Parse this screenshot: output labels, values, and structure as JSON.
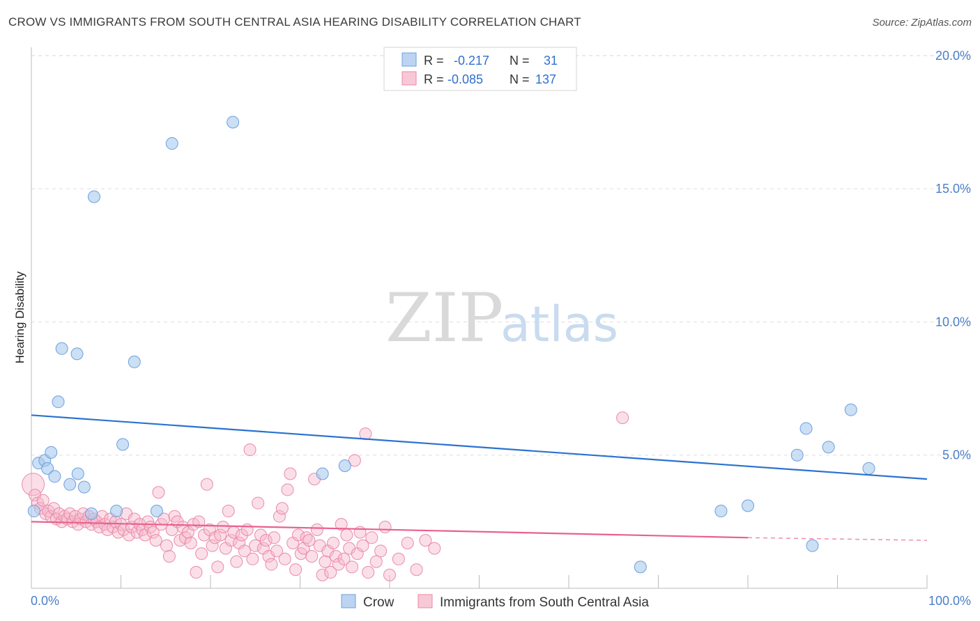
{
  "title": "CROW VS IMMIGRANTS FROM SOUTH CENTRAL ASIA HEARING DISABILITY CORRELATION CHART",
  "source": "Source: ZipAtlas.com",
  "watermark": {
    "zip": "ZIP",
    "atlas": "atlas"
  },
  "colors": {
    "crow_fill": "#a9c9ef",
    "crow_stroke": "#6e9fdc",
    "crow_line": "#2a72d0",
    "imm_fill": "#f7b8cc",
    "imm_stroke": "#e98aa8",
    "imm_line": "#e8608e",
    "axis_text": "#4a7fc9",
    "grid": "#dddddd"
  },
  "stats": {
    "row1": {
      "r_label": "R =",
      "r_value": "-0.217",
      "n_label": "N =",
      "n_value": "31"
    },
    "row2": {
      "r_label": "R =",
      "r_value": "-0.085",
      "n_label": "N =",
      "n_value": "137"
    }
  },
  "chart_data": {
    "type": "scatter",
    "title": "CROW VS IMMIGRANTS FROM SOUTH CENTRAL ASIA HEARING DISABILITY CORRELATION CHART",
    "xlabel": "",
    "ylabel": "Hearing Disability",
    "xlim": [
      0,
      100
    ],
    "ylim": [
      0,
      21
    ],
    "x_tick_labels": [
      "0.0%",
      "100.0%"
    ],
    "y_ticks": [
      5,
      10,
      15,
      20
    ],
    "y_tick_labels": [
      "5.0%",
      "10.0%",
      "15.0%",
      "20.0%"
    ],
    "grid": "horizontal dashed",
    "legend_position": "bottom",
    "series": [
      {
        "name": "Crow",
        "r": -0.217,
        "n": 31,
        "trend": {
          "x": [
            0,
            100
          ],
          "y": [
            6.5,
            4.1
          ]
        },
        "points": [
          [
            0.3,
            2.9
          ],
          [
            0.8,
            4.7
          ],
          [
            1.5,
            4.8
          ],
          [
            1.8,
            4.5
          ],
          [
            2.2,
            5.1
          ],
          [
            2.6,
            4.2
          ],
          [
            3.0,
            7.0
          ],
          [
            3.4,
            9.0
          ],
          [
            4.3,
            3.9
          ],
          [
            5.1,
            8.8
          ],
          [
            5.2,
            4.3
          ],
          [
            5.9,
            3.8
          ],
          [
            6.7,
            2.8
          ],
          [
            7.0,
            14.7
          ],
          [
            9.5,
            2.9
          ],
          [
            10.2,
            5.4
          ],
          [
            11.5,
            8.5
          ],
          [
            14.0,
            2.9
          ],
          [
            15.7,
            16.7
          ],
          [
            22.5,
            17.5
          ],
          [
            32.5,
            4.3
          ],
          [
            35.0,
            4.6
          ],
          [
            68.0,
            0.8
          ],
          [
            77.0,
            2.9
          ],
          [
            80.0,
            3.1
          ],
          [
            85.5,
            5.0
          ],
          [
            86.5,
            6.0
          ],
          [
            87.2,
            1.6
          ],
          [
            89.0,
            5.3
          ],
          [
            91.5,
            6.7
          ],
          [
            93.5,
            4.5
          ]
        ]
      },
      {
        "name": "Immigrants from South Central Asia",
        "r": -0.085,
        "n": 137,
        "trend": {
          "x": [
            0,
            80
          ],
          "y": [
            2.5,
            1.9
          ]
        },
        "trend_dashed": {
          "x": [
            80,
            100
          ],
          "y": [
            1.9,
            1.8
          ]
        },
        "points": [
          [
            0.2,
            3.9
          ],
          [
            0.4,
            3.5
          ],
          [
            0.7,
            3.2
          ],
          [
            1.0,
            3.0
          ],
          [
            1.3,
            3.3
          ],
          [
            1.6,
            2.8
          ],
          [
            1.9,
            2.9
          ],
          [
            2.2,
            2.7
          ],
          [
            2.5,
            3.0
          ],
          [
            2.8,
            2.6
          ],
          [
            3.1,
            2.8
          ],
          [
            3.4,
            2.5
          ],
          [
            3.7,
            2.7
          ],
          [
            4.0,
            2.6
          ],
          [
            4.3,
            2.8
          ],
          [
            4.6,
            2.5
          ],
          [
            4.9,
            2.7
          ],
          [
            5.2,
            2.4
          ],
          [
            5.5,
            2.6
          ],
          [
            5.8,
            2.8
          ],
          [
            6.1,
            2.5
          ],
          [
            6.4,
            2.7
          ],
          [
            6.7,
            2.4
          ],
          [
            7.0,
            2.6
          ],
          [
            7.3,
            2.5
          ],
          [
            7.6,
            2.3
          ],
          [
            7.9,
            2.7
          ],
          [
            8.2,
            2.4
          ],
          [
            8.5,
            2.2
          ],
          [
            8.8,
            2.6
          ],
          [
            9.1,
            2.3
          ],
          [
            9.4,
            2.5
          ],
          [
            9.7,
            2.1
          ],
          [
            10.0,
            2.4
          ],
          [
            10.3,
            2.2
          ],
          [
            10.6,
            2.8
          ],
          [
            10.9,
            2.0
          ],
          [
            11.2,
            2.3
          ],
          [
            11.5,
            2.6
          ],
          [
            11.8,
            2.1
          ],
          [
            12.1,
            2.4
          ],
          [
            12.4,
            2.2
          ],
          [
            12.7,
            2.0
          ],
          [
            13.0,
            2.5
          ],
          [
            13.3,
            2.3
          ],
          [
            13.6,
            2.1
          ],
          [
            13.9,
            1.8
          ],
          [
            14.2,
            3.6
          ],
          [
            14.5,
            2.4
          ],
          [
            14.8,
            2.6
          ],
          [
            15.1,
            1.6
          ],
          [
            15.4,
            1.2
          ],
          [
            15.7,
            2.2
          ],
          [
            16.0,
            2.7
          ],
          [
            16.3,
            2.5
          ],
          [
            16.6,
            1.8
          ],
          [
            16.9,
            2.3
          ],
          [
            17.2,
            1.9
          ],
          [
            17.5,
            2.1
          ],
          [
            17.8,
            1.7
          ],
          [
            18.1,
            2.4
          ],
          [
            18.4,
            0.6
          ],
          [
            18.7,
            2.5
          ],
          [
            19.0,
            1.3
          ],
          [
            19.3,
            2.0
          ],
          [
            19.6,
            3.9
          ],
          [
            19.9,
            2.2
          ],
          [
            20.2,
            1.6
          ],
          [
            20.5,
            1.9
          ],
          [
            20.8,
            0.8
          ],
          [
            21.1,
            2.0
          ],
          [
            21.4,
            2.3
          ],
          [
            21.7,
            1.5
          ],
          [
            22.0,
            2.9
          ],
          [
            22.3,
            1.8
          ],
          [
            22.6,
            2.1
          ],
          [
            22.9,
            1.0
          ],
          [
            23.2,
            1.7
          ],
          [
            23.5,
            2.0
          ],
          [
            23.8,
            1.4
          ],
          [
            24.1,
            2.2
          ],
          [
            24.4,
            5.2
          ],
          [
            24.7,
            1.1
          ],
          [
            25.0,
            1.6
          ],
          [
            25.3,
            3.2
          ],
          [
            25.6,
            2.0
          ],
          [
            25.9,
            1.5
          ],
          [
            26.2,
            1.8
          ],
          [
            26.5,
            1.2
          ],
          [
            26.8,
            0.9
          ],
          [
            27.1,
            1.9
          ],
          [
            27.4,
            1.4
          ],
          [
            27.7,
            2.7
          ],
          [
            28.0,
            3.0
          ],
          [
            28.3,
            1.1
          ],
          [
            28.6,
            3.7
          ],
          [
            28.9,
            4.3
          ],
          [
            29.2,
            1.7
          ],
          [
            29.5,
            0.7
          ],
          [
            29.8,
            2.0
          ],
          [
            30.1,
            1.3
          ],
          [
            30.4,
            1.5
          ],
          [
            30.7,
            1.9
          ],
          [
            31.0,
            1.8
          ],
          [
            31.3,
            1.2
          ],
          [
            31.6,
            4.1
          ],
          [
            31.9,
            2.2
          ],
          [
            32.2,
            1.6
          ],
          [
            32.5,
            0.5
          ],
          [
            32.8,
            1.0
          ],
          [
            33.1,
            1.4
          ],
          [
            33.4,
            0.6
          ],
          [
            33.7,
            1.7
          ],
          [
            34.0,
            1.2
          ],
          [
            34.3,
            0.9
          ],
          [
            34.6,
            2.4
          ],
          [
            34.9,
            1.1
          ],
          [
            35.2,
            2.0
          ],
          [
            35.5,
            1.5
          ],
          [
            35.8,
            0.8
          ],
          [
            36.1,
            4.8
          ],
          [
            36.4,
            1.3
          ],
          [
            36.7,
            2.1
          ],
          [
            37.0,
            1.6
          ],
          [
            37.3,
            5.8
          ],
          [
            37.6,
            0.6
          ],
          [
            38.0,
            1.9
          ],
          [
            38.5,
            1.0
          ],
          [
            39.0,
            1.4
          ],
          [
            39.5,
            2.3
          ],
          [
            40.0,
            0.5
          ],
          [
            41.0,
            1.1
          ],
          [
            42.0,
            1.7
          ],
          [
            43.0,
            0.7
          ],
          [
            44.0,
            1.8
          ],
          [
            45.0,
            1.5
          ],
          [
            66.0,
            6.4
          ]
        ]
      }
    ]
  },
  "legend": {
    "crow": "Crow",
    "immigrants": "Immigrants from South Central Asia"
  }
}
